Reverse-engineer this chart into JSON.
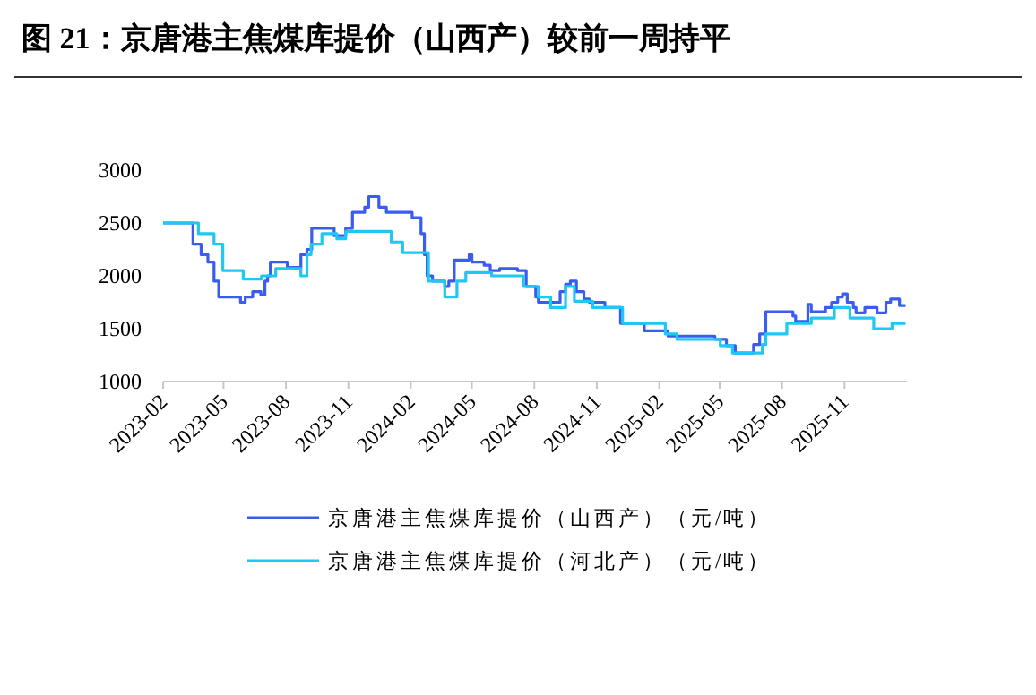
{
  "chart_data": {
    "type": "step",
    "title": "图 21：京唐港主焦煤库提价（山西产）较前一周持平",
    "xlim": [
      "2023-02",
      "2026-02"
    ],
    "xticks": [
      "2023-02",
      "2023-05",
      "2023-08",
      "2023-11",
      "2024-02",
      "2024-05",
      "2024-08",
      "2024-11",
      "2025-02",
      "2025-05",
      "2025-08",
      "2025-11"
    ],
    "ylim": [
      1000,
      3000
    ],
    "yticks": [
      1000,
      1500,
      2000,
      2500,
      3000
    ],
    "grid": false,
    "legend": "bottom",
    "series": [
      {
        "name": "京唐港主焦煤库提价（山西产）（元/吨）",
        "color": "#3a5cf0",
        "x": [
          "2023-02-01",
          "2023-03-17",
          "2023-03-29",
          "2023-04-08",
          "2023-04-17",
          "2023-04-24",
          "2023-05-26",
          "2023-06-02",
          "2023-06-13",
          "2023-06-25",
          "2023-07-01",
          "2023-07-05",
          "2023-07-09",
          "2023-08-03",
          "2023-08-23",
          "2023-09-01",
          "2023-09-08",
          "2023-10-11",
          "2023-10-28",
          "2023-11-07",
          "2023-11-25",
          "2023-12-01",
          "2023-12-16",
          "2023-12-27",
          "2024-02-03",
          "2024-02-16",
          "2024-02-21",
          "2024-02-25",
          "2024-03-04",
          "2024-03-22",
          "2024-03-28",
          "2024-04-05",
          "2024-04-27",
          "2024-05-01",
          "2024-05-19",
          "2024-05-28",
          "2024-06-11",
          "2024-07-07",
          "2024-07-20",
          "2024-08-03",
          "2024-08-07",
          "2024-09-08",
          "2024-09-16",
          "2024-09-23",
          "2024-10-02",
          "2024-10-13",
          "2024-10-21",
          "2024-11-13",
          "2024-12-06",
          "2025-01-10",
          "2025-02-14",
          "2025-04-24",
          "2025-05-11",
          "2025-05-24",
          "2025-06-20",
          "2025-06-29",
          "2025-07-08",
          "2025-08-17",
          "2025-08-21",
          "2025-09-08",
          "2025-09-13",
          "2025-10-04",
          "2025-10-13",
          "2025-10-22",
          "2025-10-29",
          "2025-11-05",
          "2025-11-14",
          "2025-11-18",
          "2025-12-01",
          "2025-12-19",
          "2026-01-01",
          "2026-01-08",
          "2026-01-21",
          "2026-01-30"
        ],
        "values": [
          2500,
          2300,
          2200,
          2130,
          1950,
          1800,
          1750,
          1800,
          1850,
          1820,
          1950,
          2000,
          2130,
          2080,
          2200,
          2250,
          2450,
          2380,
          2450,
          2600,
          2650,
          2750,
          2650,
          2600,
          2550,
          2400,
          2200,
          2000,
          1950,
          1900,
          1950,
          2150,
          2200,
          2130,
          2100,
          2050,
          2070,
          2050,
          1900,
          1800,
          1750,
          1850,
          1920,
          1950,
          1850,
          1780,
          1750,
          1700,
          1550,
          1480,
          1430,
          1400,
          1340,
          1270,
          1350,
          1450,
          1660,
          1620,
          1570,
          1730,
          1660,
          1700,
          1750,
          1800,
          1830,
          1750,
          1700,
          1650,
          1700,
          1650,
          1750,
          1780,
          1720,
          1720
        ]
      },
      {
        "name": "京唐港主焦煤库提价（河北产）（元/吨）",
        "color": "#1ec8f5",
        "x": [
          "2023-02-01",
          "2023-03-25",
          "2023-04-17",
          "2023-04-30",
          "2023-05-30",
          "2023-06-26",
          "2023-07-17",
          "2023-08-23",
          "2023-09-01",
          "2023-09-07",
          "2023-09-23",
          "2023-10-15",
          "2023-10-28",
          "2024-01-03",
          "2024-01-20",
          "2024-02-27",
          "2024-03-22",
          "2024-04-09",
          "2024-04-22",
          "2024-05-30",
          "2024-07-16",
          "2024-08-07",
          "2024-08-25",
          "2024-09-16",
          "2024-09-29",
          "2024-10-26",
          "2024-12-09",
          "2025-02-10",
          "2025-02-27",
          "2025-05-02",
          "2025-05-20",
          "2025-07-03",
          "2025-07-08",
          "2025-08-08",
          "2025-09-13",
          "2025-10-17",
          "2025-11-09",
          "2025-12-14",
          "2026-01-10",
          "2026-01-30"
        ],
        "values": [
          2500,
          2400,
          2300,
          2050,
          1970,
          2000,
          2070,
          2000,
          2200,
          2300,
          2400,
          2350,
          2420,
          2320,
          2220,
          1950,
          1800,
          1950,
          2030,
          2000,
          1900,
          1800,
          1700,
          1900,
          1760,
          1700,
          1550,
          1450,
          1400,
          1340,
          1270,
          1350,
          1450,
          1550,
          1600,
          1700,
          1600,
          1500,
          1550,
          1550
        ]
      }
    ]
  }
}
